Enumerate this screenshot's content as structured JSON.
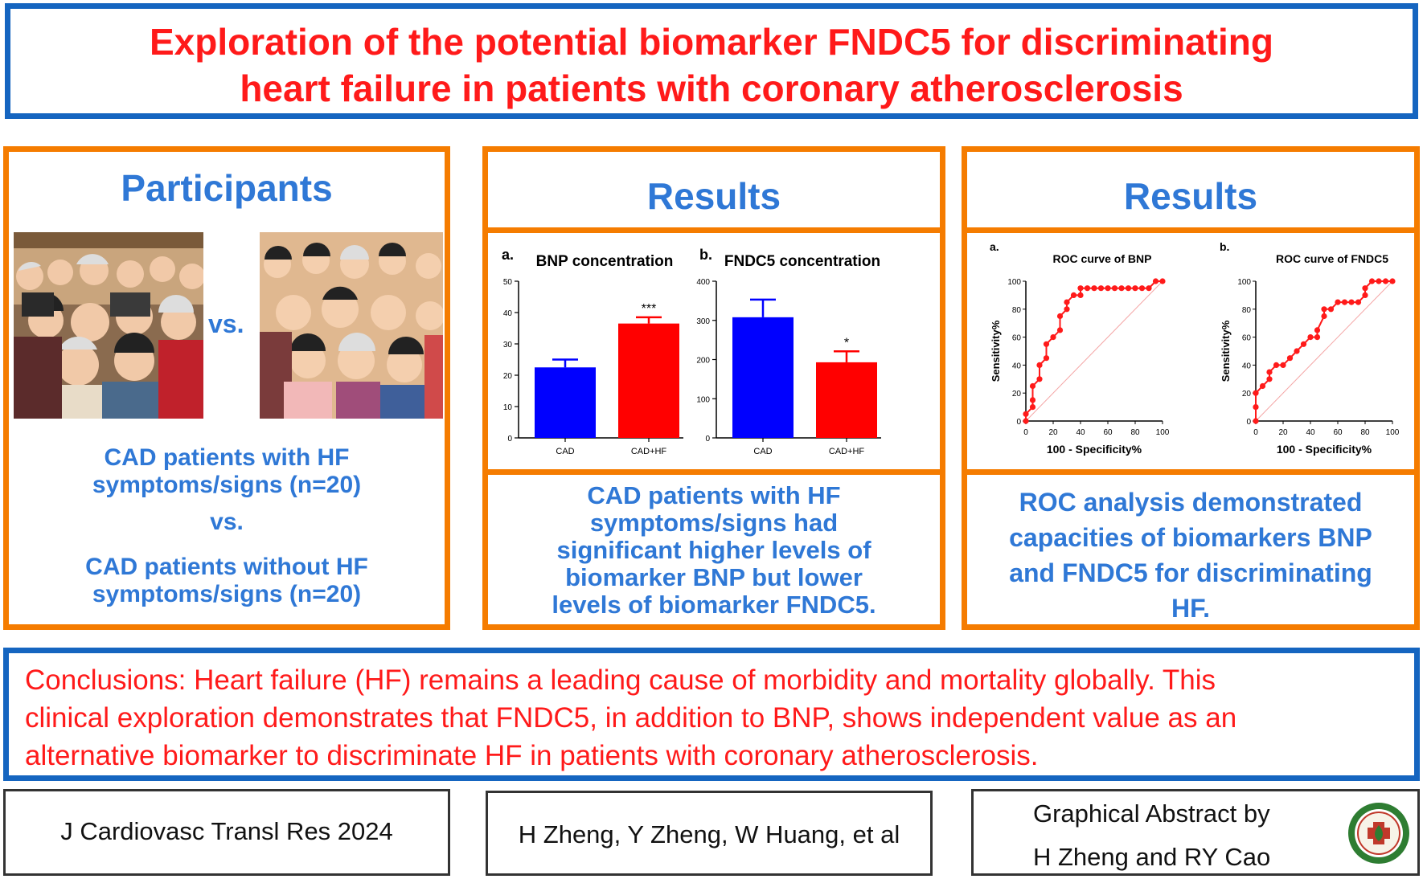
{
  "title": {
    "line1": "Exploration of the potential biomarker FNDC5 for discriminating",
    "line2": "heart failure in patients with coronary atherosclerosis"
  },
  "participants": {
    "heading": "Participants",
    "vs_label": "vs.",
    "group1_line1": "CAD patients  with  HF",
    "group1_line2": "symptoms/signs  (n=20)",
    "vs_text": "vs.",
    "group2_line1": "CAD patients  without  HF",
    "group2_line2": "symptoms/signs  (n=20)"
  },
  "results1": {
    "heading": "Results",
    "text_lines": [
      "CAD patients  with  HF",
      "symptoms/signs  had",
      "significant  higher  levels  of",
      "biomarker  BNP but lower",
      "levels  of biomarker  FNDC5."
    ]
  },
  "results2": {
    "heading": "Results",
    "text_lines": [
      "ROC analysis  demonstrated",
      "capacities  of biomarkers  BNP",
      "and  FNDC5 for discriminating",
      "HF."
    ]
  },
  "conclusion": {
    "lines": [
      "Conclusions: Heart failure (HF) remains a leading cause of morbidity and mortality globally. This",
      "clinical exploration demonstrates that FNDC5, in addition to BNP, shows independent value as an",
      "alternative biomarker to discriminate HF in patients with coronary atherosclerosis."
    ]
  },
  "footer": {
    "journal": "J Cardiovasc Transl  Res 2024",
    "authors": "H Zheng,  Y Zheng,  W Huang,  et al",
    "credit_line1": "Graphical Abstract by",
    "credit_line2": "H Zheng  and RY Cao"
  },
  "colors": {
    "blue": "#1565c0",
    "orange": "#f57c00",
    "red": "#ff1a1a",
    "bar_blue": "#0000ff",
    "bar_red": "#ff0000"
  },
  "chart_data": [
    {
      "type": "bar",
      "panel": "a.",
      "title": "BNP concentration",
      "categories": [
        "CAD",
        "CAD+HF"
      ],
      "values": [
        22.5,
        36.5
      ],
      "errors": [
        2.5,
        2.0
      ],
      "significance": [
        "",
        "***"
      ],
      "ylim": [
        0,
        50
      ],
      "yticks": [
        0,
        10,
        20,
        30,
        40,
        50
      ]
    },
    {
      "type": "bar",
      "panel": "b.",
      "title": "FNDC5 concentration",
      "categories": [
        "CAD",
        "CAD+HF"
      ],
      "values": [
        308,
        193
      ],
      "errors": [
        45,
        28
      ],
      "significance": [
        "",
        "*"
      ],
      "ylim": [
        0,
        400
      ],
      "yticks": [
        0,
        100,
        200,
        300,
        400
      ]
    },
    {
      "type": "line",
      "panel": "a.",
      "title": "ROC curve of BNP",
      "xlabel": "100 - Specificity%",
      "ylabel": "Sensitivity%",
      "xlim": [
        0,
        100
      ],
      "ylim": [
        0,
        100
      ],
      "xticks": [
        0,
        20,
        40,
        60,
        80,
        100
      ],
      "yticks": [
        0,
        20,
        40,
        60,
        80,
        100
      ],
      "x": [
        0,
        0,
        5,
        5,
        5,
        10,
        10,
        15,
        15,
        20,
        25,
        25,
        30,
        30,
        35,
        40,
        40,
        45,
        50,
        55,
        60,
        65,
        70,
        75,
        80,
        85,
        90,
        95,
        100
      ],
      "y": [
        0,
        5,
        10,
        15,
        25,
        30,
        40,
        45,
        55,
        60,
        65,
        75,
        80,
        85,
        90,
        90,
        95,
        95,
        95,
        95,
        95,
        95,
        95,
        95,
        95,
        95,
        95,
        100,
        100
      ]
    },
    {
      "type": "line",
      "panel": "b.",
      "title": "ROC curve of FNDC5",
      "xlabel": "100 - Specificity%",
      "ylabel": "Sensitivity%",
      "xlim": [
        0,
        100
      ],
      "ylim": [
        0,
        100
      ],
      "xticks": [
        0,
        20,
        40,
        60,
        80,
        100
      ],
      "yticks": [
        0,
        20,
        40,
        60,
        80,
        100
      ],
      "x": [
        0,
        0,
        0,
        5,
        10,
        10,
        15,
        20,
        25,
        30,
        35,
        40,
        45,
        45,
        50,
        50,
        55,
        60,
        65,
        70,
        75,
        80,
        80,
        85,
        90,
        95,
        100
      ],
      "y": [
        0,
        10,
        20,
        25,
        30,
        35,
        40,
        40,
        45,
        50,
        55,
        60,
        60,
        65,
        75,
        80,
        80,
        85,
        85,
        85,
        85,
        90,
        95,
        100,
        100,
        100,
        100
      ]
    }
  ]
}
